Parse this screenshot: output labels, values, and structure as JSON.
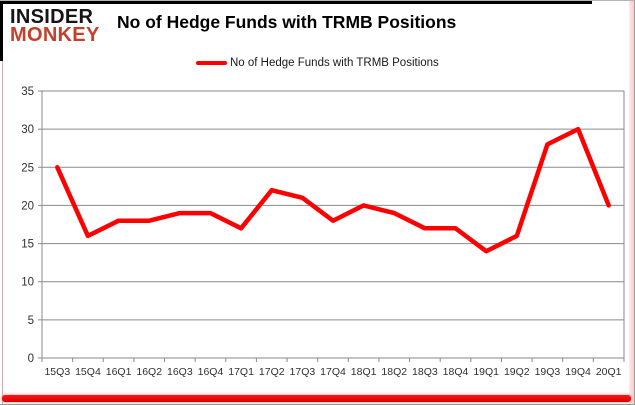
{
  "brand": {
    "line1": "INSIDER",
    "line2": "MONKEY"
  },
  "header": {
    "title": "No of Hedge Funds with TRMB Positions"
  },
  "legend": {
    "label": "No of Hedge Funds with TRMB Positions"
  },
  "colors": {
    "series_red": "#ff0000",
    "brand_red": "#c2402c",
    "grid_gray": "#8a8a8a",
    "axis_text": "#303030"
  },
  "chart_data": {
    "type": "line",
    "title": "No of Hedge Funds with TRMB Positions",
    "xlabel": "",
    "ylabel": "",
    "categories": [
      "15Q3",
      "15Q4",
      "16Q1",
      "16Q2",
      "16Q3",
      "16Q4",
      "17Q1",
      "17Q2",
      "17Q3",
      "17Q4",
      "18Q1",
      "18Q2",
      "18Q3",
      "18Q4",
      "19Q1",
      "19Q2",
      "19Q3",
      "19Q4",
      "20Q1"
    ],
    "series": [
      {
        "name": "No of Hedge Funds with TRMB Positions",
        "color": "#ff0000",
        "values": [
          25,
          16,
          18,
          18,
          19,
          19,
          17,
          22,
          21,
          18,
          20,
          19,
          17,
          17,
          14,
          16,
          28,
          30,
          20
        ]
      }
    ],
    "ylim": [
      0,
      35
    ],
    "ytick_step": 5,
    "grid": true,
    "legend_position": "top-center"
  }
}
